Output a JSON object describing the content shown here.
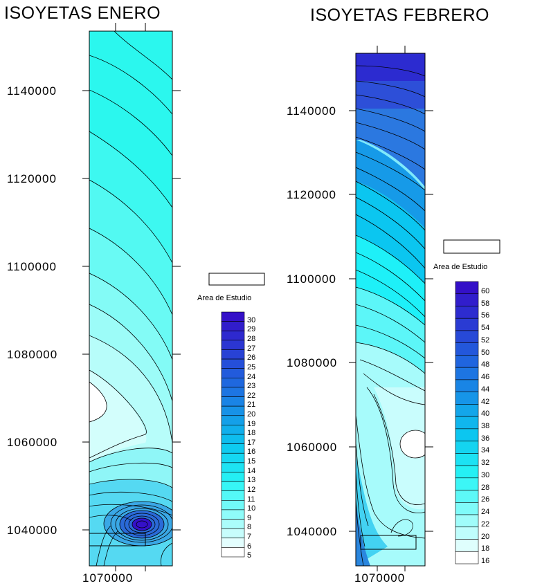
{
  "maps": [
    {
      "title": "ISOYETAS ENERO",
      "y_ticks": [
        "1140000",
        "1120000",
        "1100000",
        "1080000",
        "1060000",
        "1040000"
      ],
      "x_ticks": [
        "1070000"
      ],
      "legend_caption": "Area de Estudio",
      "legend_levels": [
        "30",
        "29",
        "28",
        "27",
        "26",
        "25",
        "24",
        "23",
        "22",
        "21",
        "20",
        "19",
        "18",
        "17",
        "16",
        "15",
        "14",
        "13",
        "12",
        "11",
        "10",
        "9",
        "8",
        "7",
        "6",
        "5"
      ]
    },
    {
      "title": "ISOYETAS FEBRERO",
      "y_ticks": [
        "1140000",
        "1120000",
        "1100000",
        "1080000",
        "1060000",
        "1040000"
      ],
      "x_ticks": [
        "1070000"
      ],
      "legend_caption": "Area de Estudio",
      "legend_levels": [
        "60",
        "58",
        "56",
        "54",
        "52",
        "50",
        "48",
        "46",
        "44",
        "42",
        "40",
        "38",
        "36",
        "34",
        "32",
        "30",
        "28",
        "26",
        "24",
        "22",
        "20",
        "18",
        "16"
      ]
    }
  ]
}
